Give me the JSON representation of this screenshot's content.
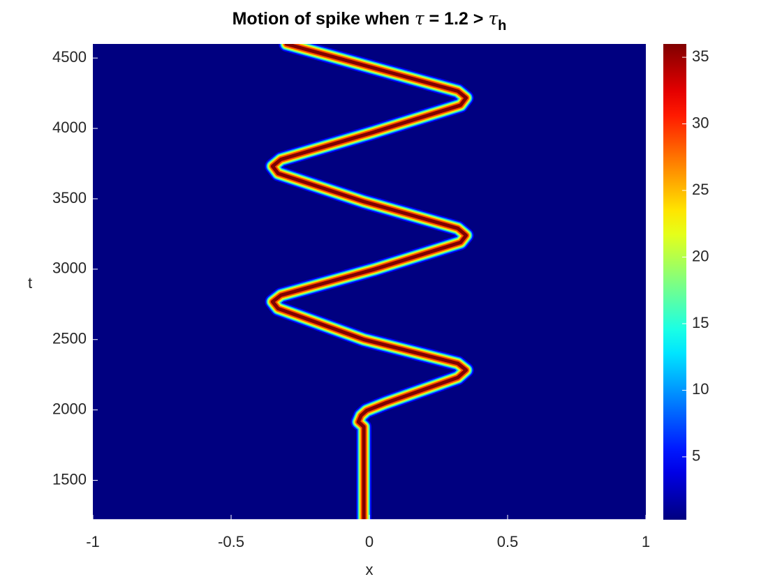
{
  "chart_data": {
    "type": "heatmap",
    "title_parts": [
      "Motion of spike when ",
      "τ",
      " = 1.2 > ",
      "τ",
      "h"
    ],
    "xlabel": "x",
    "ylabel": "t",
    "xlim": [
      -1,
      1
    ],
    "xticks": [
      -1,
      -0.5,
      0,
      0.5,
      1
    ],
    "ylim": [
      1220,
      4600
    ],
    "yticks": [
      1500,
      2000,
      2500,
      3000,
      3500,
      4000,
      4500
    ],
    "colormap": "jet",
    "clim": [
      0.28,
      36
    ],
    "cticks": [
      5,
      10,
      15,
      20,
      25,
      30,
      35
    ],
    "peak": 36,
    "path": {
      "t": [
        1220,
        1880,
        1915,
        1960,
        1995,
        2050,
        2230,
        2283,
        2330,
        2500,
        2720,
        2769,
        2815,
        3000,
        3190,
        3240,
        3290,
        3480,
        3680,
        3731,
        3780,
        3970,
        4165,
        4217,
        4265,
        4600
      ],
      "x": [
        -0.02,
        -0.02,
        -0.04,
        -0.03,
        -0.01,
        0.06,
        0.32,
        0.35,
        0.32,
        -0.02,
        -0.33,
        -0.35,
        -0.32,
        0.02,
        0.33,
        0.35,
        0.32,
        -0.02,
        -0.33,
        -0.35,
        -0.32,
        0.01,
        0.33,
        0.35,
        0.32,
        -0.3
      ]
    }
  }
}
